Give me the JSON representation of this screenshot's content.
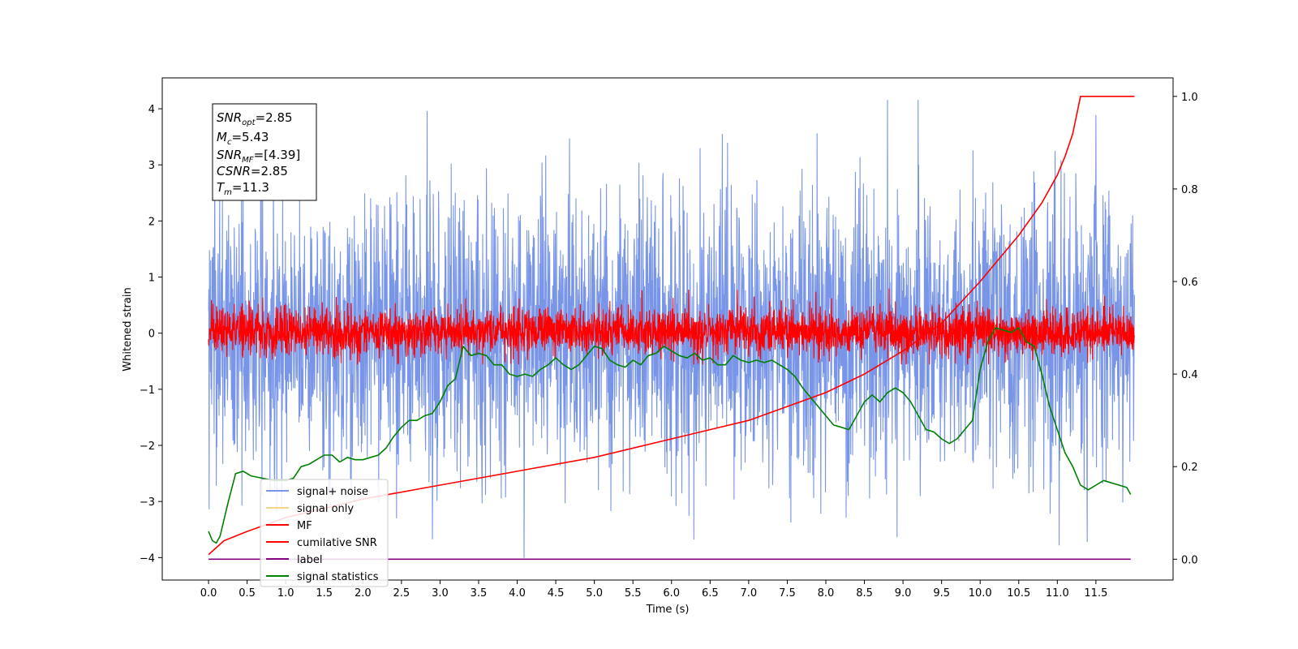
{
  "chart_data": {
    "type": "line",
    "xlabel": "Time (s)",
    "ylabel": "Whitened strain",
    "xlim": [
      -0.6,
      12.5
    ],
    "ylim_left": [
      -4.4,
      4.55
    ],
    "ylim_right": [
      -0.045,
      1.04
    ],
    "x_ticks": [
      "0.0",
      "0.5",
      "1.0",
      "1.5",
      "2.0",
      "2.5",
      "3.0",
      "3.5",
      "4.0",
      "4.5",
      "5.0",
      "5.5",
      "6.0",
      "6.5",
      "7.0",
      "7.5",
      "8.0",
      "8.5",
      "9.0",
      "9.5",
      "10.0",
      "10.5",
      "11.0",
      "11.5"
    ],
    "y_ticks_left": [
      "−4",
      "−3",
      "−2",
      "−1",
      "0",
      "1",
      "2",
      "3",
      "4"
    ],
    "y_ticks_right": [
      "0.0",
      "0.2",
      "0.4",
      "0.6",
      "0.8",
      "1.0"
    ],
    "grid": false,
    "legend_position": "lower-left",
    "info_box": {
      "line1": {
        "label": "SNR",
        "sub": "opt",
        "value": "=2.85"
      },
      "line2": {
        "label": "M",
        "sub": "c",
        "value": "=5.43"
      },
      "line3": {
        "label": "SNR",
        "sub": "MF",
        "value": "=[4.39]"
      },
      "line4": {
        "label": "CSNR",
        "value": "=2.85"
      },
      "line5": {
        "label": "T",
        "sub": "m",
        "value": "=11.3"
      }
    },
    "series": [
      {
        "name": "signal+ noise",
        "color": "#7895e8",
        "axis": "left",
        "kind": "noise",
        "x_range": [
          0,
          12.0
        ],
        "typical_range": [
          -2.6,
          2.6
        ],
        "extremes": [
          -4.0,
          4.15
        ]
      },
      {
        "name": "signal only",
        "color": "#f5d48a",
        "axis": "left",
        "kind": "hidden"
      },
      {
        "name": "MF",
        "color": "#ff0000",
        "axis": "left",
        "kind": "noise",
        "x_range": [
          0,
          12.0
        ],
        "typical_range": [
          -0.4,
          0.45
        ],
        "extremes": [
          -0.55,
          0.9
        ]
      },
      {
        "name": "cumilative SNR",
        "color": "#ff0000",
        "axis": "right",
        "x": [
          0,
          0.2,
          0.5,
          1.0,
          1.5,
          2.0,
          3.0,
          4.0,
          5.0,
          6.0,
          7.0,
          7.5,
          8.0,
          8.5,
          9.0,
          9.5,
          10.0,
          10.5,
          10.8,
          11.0,
          11.1,
          11.2,
          11.3,
          11.35,
          12.0
        ],
        "y": [
          0.01,
          0.04,
          0.06,
          0.09,
          0.11,
          0.13,
          0.16,
          0.19,
          0.22,
          0.26,
          0.3,
          0.33,
          0.36,
          0.4,
          0.45,
          0.51,
          0.6,
          0.7,
          0.77,
          0.83,
          0.87,
          0.92,
          1.0,
          1.0,
          1.0
        ]
      },
      {
        "name": "label",
        "color": "#800080",
        "axis": "right",
        "x": [
          0,
          11.95
        ],
        "y": [
          0.0,
          0.0
        ]
      },
      {
        "name": "signal statistics",
        "color": "#008000",
        "axis": "right",
        "x": [
          0,
          0.05,
          0.1,
          0.15,
          0.25,
          0.35,
          0.45,
          0.55,
          0.7,
          0.85,
          1.0,
          1.1,
          1.2,
          1.3,
          1.4,
          1.5,
          1.6,
          1.7,
          1.8,
          1.9,
          2.0,
          2.1,
          2.2,
          2.3,
          2.4,
          2.5,
          2.6,
          2.7,
          2.8,
          2.9,
          3.0,
          3.1,
          3.2,
          3.3,
          3.4,
          3.5,
          3.6,
          3.7,
          3.8,
          3.9,
          4.0,
          4.1,
          4.2,
          4.3,
          4.4,
          4.5,
          4.6,
          4.7,
          4.8,
          4.9,
          5.0,
          5.1,
          5.2,
          5.3,
          5.4,
          5.5,
          5.6,
          5.7,
          5.8,
          5.9,
          6.0,
          6.1,
          6.2,
          6.3,
          6.4,
          6.5,
          6.6,
          6.7,
          6.8,
          6.9,
          7.0,
          7.1,
          7.2,
          7.3,
          7.4,
          7.5,
          7.6,
          7.7,
          7.8,
          7.9,
          8.0,
          8.1,
          8.2,
          8.3,
          8.4,
          8.5,
          8.6,
          8.7,
          8.8,
          8.9,
          9.0,
          9.1,
          9.2,
          9.3,
          9.4,
          9.5,
          9.6,
          9.7,
          9.8,
          9.9,
          10.0,
          10.1,
          10.2,
          10.3,
          10.4,
          10.5,
          10.6,
          10.7,
          10.8,
          10.9,
          11.0,
          11.1,
          11.2,
          11.3,
          11.4,
          11.5,
          11.6,
          11.7,
          11.8,
          11.9,
          11.95
        ],
        "y": [
          0.06,
          0.04,
          0.035,
          0.05,
          0.12,
          0.185,
          0.19,
          0.18,
          0.175,
          0.17,
          0.17,
          0.175,
          0.2,
          0.205,
          0.215,
          0.225,
          0.225,
          0.21,
          0.22,
          0.215,
          0.215,
          0.22,
          0.225,
          0.24,
          0.265,
          0.285,
          0.3,
          0.3,
          0.31,
          0.315,
          0.34,
          0.375,
          0.39,
          0.46,
          0.44,
          0.445,
          0.44,
          0.42,
          0.42,
          0.4,
          0.395,
          0.4,
          0.395,
          0.41,
          0.42,
          0.435,
          0.42,
          0.41,
          0.42,
          0.44,
          0.46,
          0.455,
          0.43,
          0.42,
          0.415,
          0.43,
          0.42,
          0.44,
          0.445,
          0.46,
          0.45,
          0.44,
          0.435,
          0.445,
          0.43,
          0.435,
          0.42,
          0.42,
          0.44,
          0.43,
          0.425,
          0.43,
          0.425,
          0.43,
          0.42,
          0.41,
          0.395,
          0.37,
          0.35,
          0.33,
          0.31,
          0.29,
          0.285,
          0.28,
          0.31,
          0.34,
          0.355,
          0.34,
          0.36,
          0.37,
          0.36,
          0.34,
          0.31,
          0.28,
          0.275,
          0.26,
          0.25,
          0.26,
          0.28,
          0.3,
          0.41,
          0.47,
          0.5,
          0.495,
          0.49,
          0.5,
          0.47,
          0.46,
          0.4,
          0.33,
          0.28,
          0.23,
          0.2,
          0.16,
          0.15,
          0.16,
          0.17,
          0.165,
          0.16,
          0.155,
          0.14
        ]
      }
    ]
  }
}
